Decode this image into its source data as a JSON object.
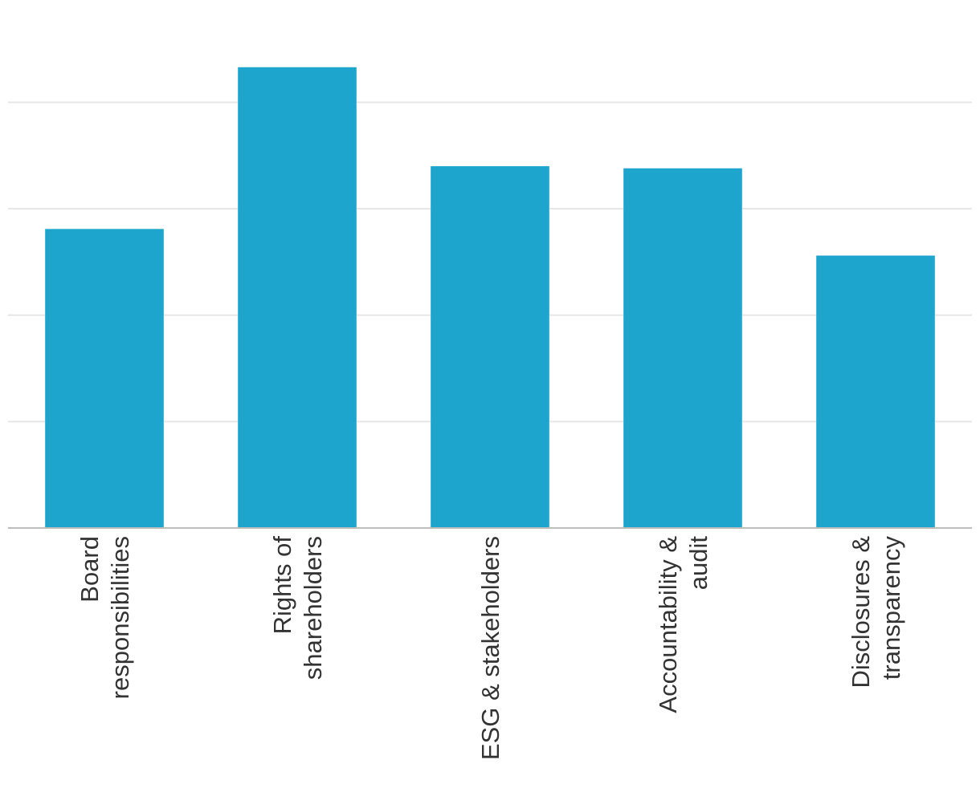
{
  "chart_data": {
    "type": "bar",
    "title": "",
    "xlabel": "",
    "ylabel": "",
    "categories": [
      [
        "Board",
        "responsibilities"
      ],
      [
        "Rights of",
        "shareholders"
      ],
      [
        "ESG & stakeholders"
      ],
      [
        "Accountability &",
        "audit"
      ],
      [
        "Disclosures &",
        "transparency"
      ]
    ],
    "values": [
      2.81,
      4.33,
      3.4,
      3.38,
      2.56
    ],
    "ylim": [
      0,
      4.66
    ],
    "y_gridlines": [
      1,
      2,
      3,
      4
    ],
    "y_tick_labels_shown": false,
    "grid": true,
    "legend": "none",
    "colors": {
      "bar": "#1ea5cd",
      "grid": "#e6e6e6",
      "axis": "#bdbdbd",
      "label": "#333333"
    }
  }
}
